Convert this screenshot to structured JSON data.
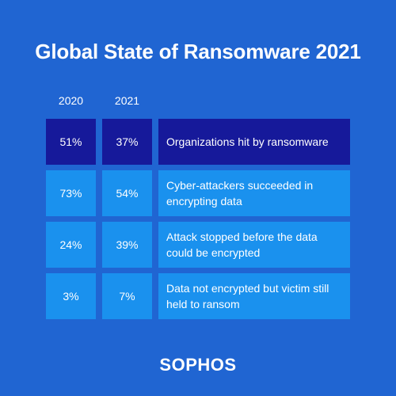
{
  "title": "Global State of Ransomware 2021",
  "logo_text": "SOPHOS",
  "colors": {
    "background": "#2065d2",
    "highlight_row": "#16199a",
    "row": "#1a91ee",
    "text": "#ffffff"
  },
  "chart_data": {
    "type": "table",
    "title": "Global State of Ransomware 2021",
    "columns": [
      "2020",
      "2021"
    ],
    "rows": [
      {
        "label": "Organizations hit by ransomware",
        "values": [
          "51%",
          "37%"
        ],
        "highlight": true
      },
      {
        "label": "Cyber-attackers succeeded in encrypting data",
        "values": [
          "73%",
          "54%"
        ],
        "highlight": false
      },
      {
        "label": "Attack stopped before the data could be encrypted",
        "values": [
          "24%",
          "39%"
        ],
        "highlight": false
      },
      {
        "label": "Data not encrypted but victim still held to ransom",
        "values": [
          "3%",
          "7%"
        ],
        "highlight": false
      }
    ]
  }
}
